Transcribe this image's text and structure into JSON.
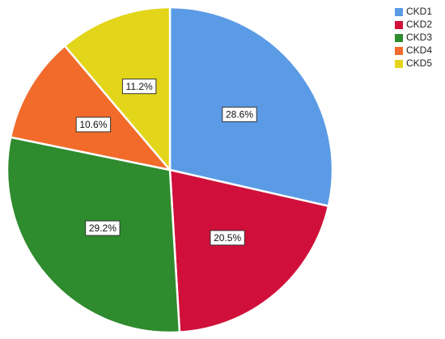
{
  "chart_data": {
    "type": "pie",
    "categories": [
      "CKD1",
      "CKD2",
      "CKD3",
      "CKD4",
      "CKD5"
    ],
    "values": [
      28.6,
      20.5,
      29.2,
      10.6,
      11.2
    ],
    "value_labels": [
      "28.6%",
      "20.5%",
      "29.2%",
      "10.6%",
      "11.2%"
    ],
    "colors": [
      "#5b9be6",
      "#d0103a",
      "#2e8b2e",
      "#f26b2a",
      "#e3d519"
    ],
    "legend": "top-right"
  }
}
